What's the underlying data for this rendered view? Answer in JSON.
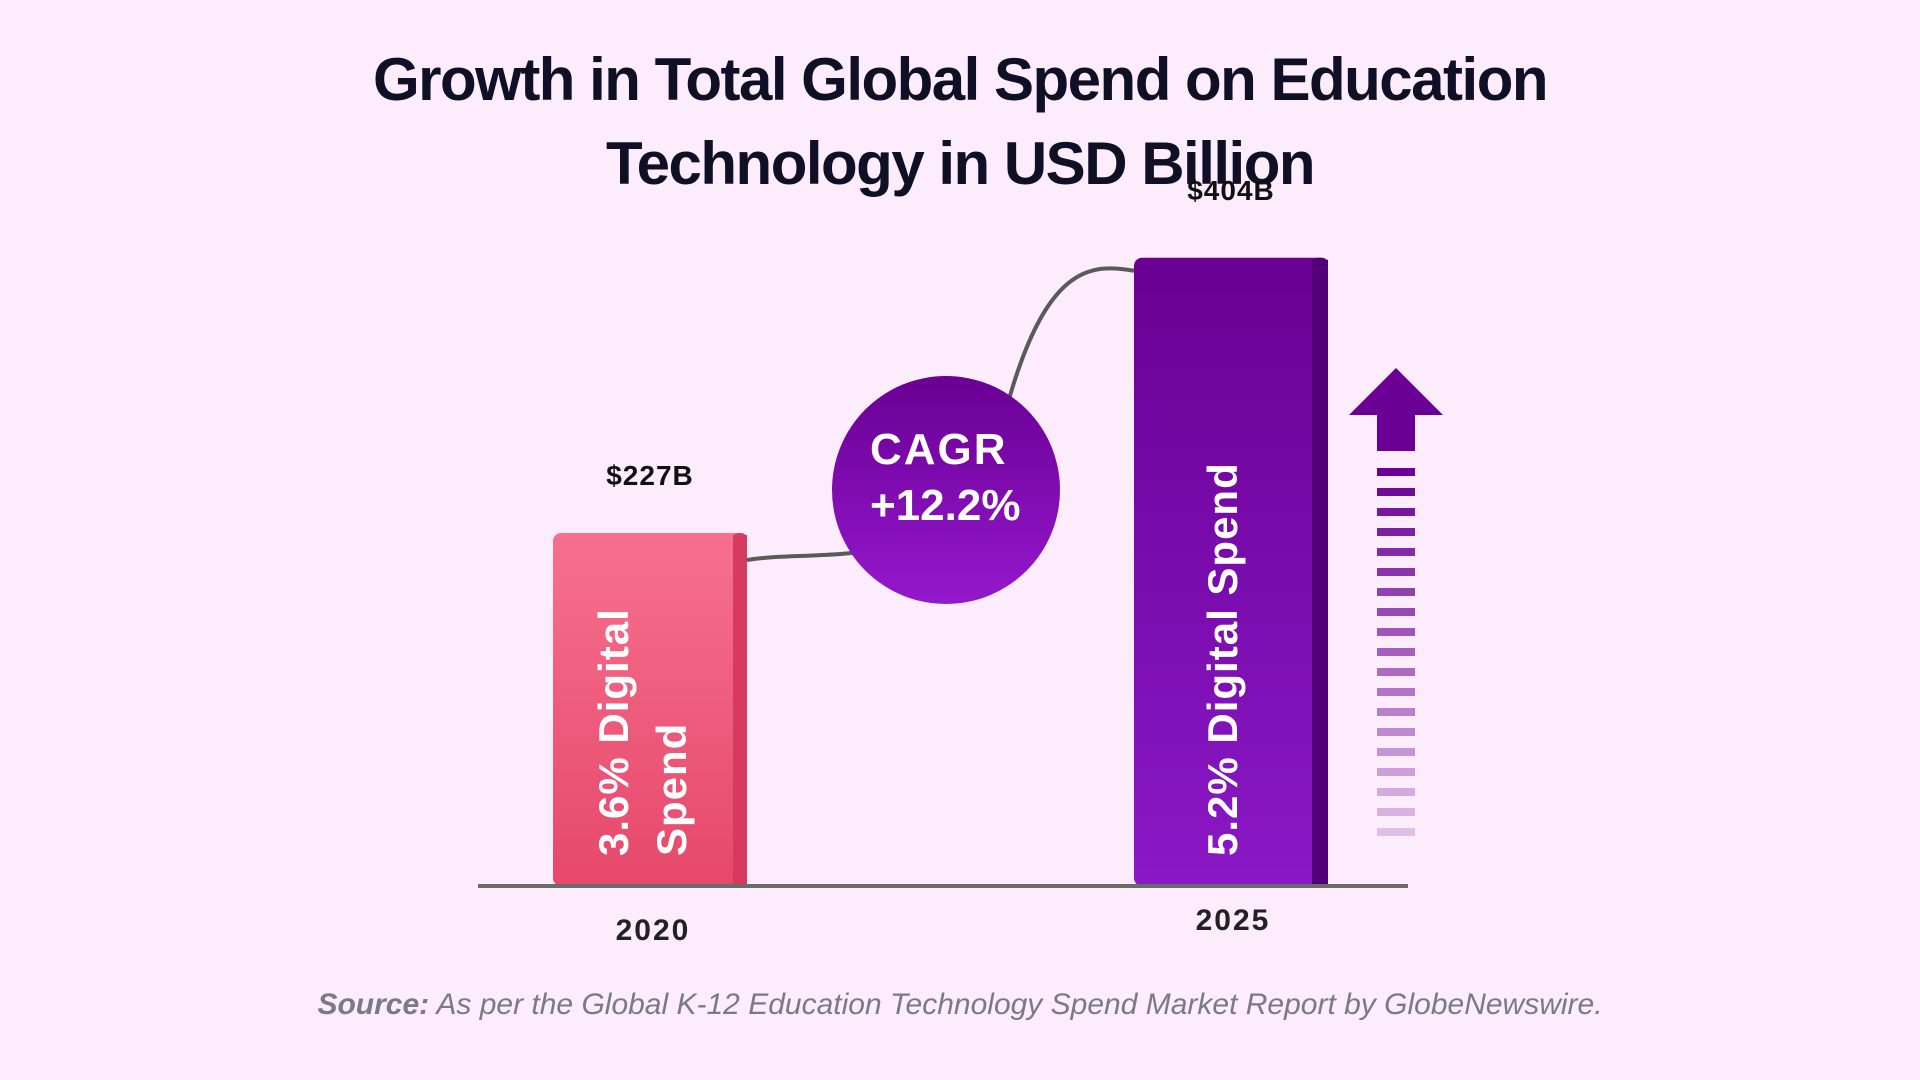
{
  "chart_data": {
    "type": "bar",
    "title": [
      "Growth in Total Global Spend on Education",
      "Technology in USD Billion"
    ],
    "categories": [
      "2020",
      "2025"
    ],
    "values": [
      227,
      404
    ],
    "value_labels": [
      "$227B",
      "$404B"
    ],
    "bar_texts": [
      [
        "3.6% Digital",
        "Spend"
      ],
      [
        "5.2% Digital Spend"
      ]
    ],
    "annotation": [
      "CAGR",
      "+12.2%"
    ],
    "colors": {
      "bar_2020_top": "#f7708f",
      "bar_2020_bottom": "#e6486a",
      "bar_2020_side": "#d63a5e",
      "bar_2025_top": "#6a0094",
      "bar_2025_bottom": "#8a18c6",
      "bar_2025_side": "#52007a",
      "circle_top": "#6a0094",
      "circle_bottom": "#9418cc",
      "arrow": "#6a0094",
      "axis": "#6b6b6b"
    }
  },
  "source": {
    "label": "Source:",
    "text": " As per the Global K-12 Education Technology Spend Market Report by GlobeNewswire."
  }
}
